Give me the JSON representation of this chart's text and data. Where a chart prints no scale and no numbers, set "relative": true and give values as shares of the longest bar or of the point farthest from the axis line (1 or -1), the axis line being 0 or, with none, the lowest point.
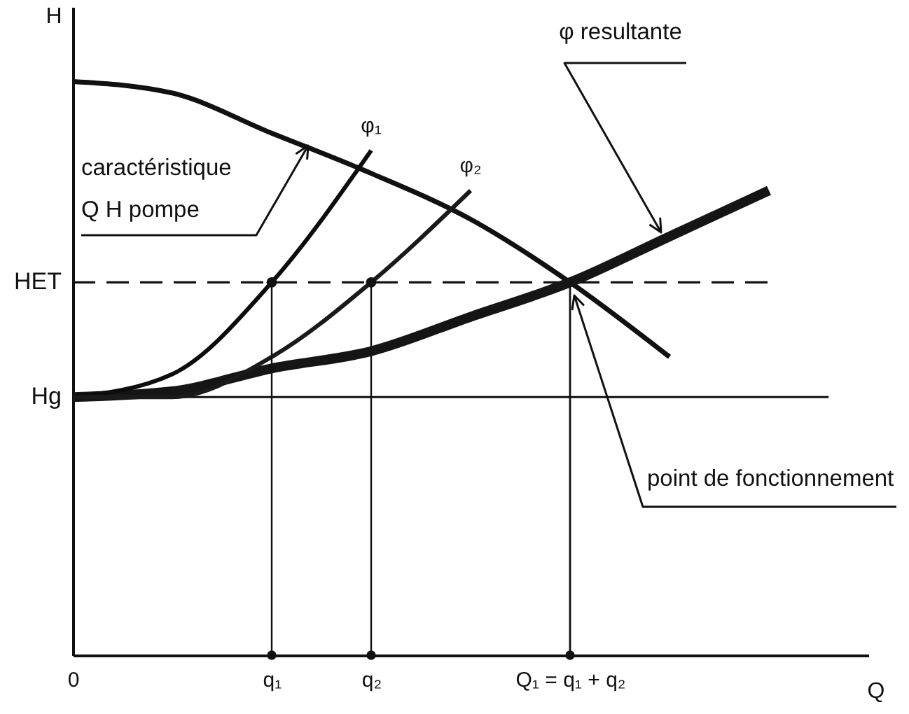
{
  "chart_data": {
    "type": "line",
    "relative": true,
    "xlabel": "Q",
    "ylabel": "H",
    "categories": [
      "0",
      null,
      "q₁",
      "q₂",
      null,
      "Q₁ = q₁ + q₂",
      null,
      null,
      null
    ],
    "series": [
      {
        "color": "#111111",
        "values": [
          1,
          0.98,
          0.91,
          0.84,
          0.76,
          0.65,
          0.52,
          null,
          null
        ]
      },
      {
        "color": "#151515",
        "values": [
          0.45,
          0.46,
          0.5,
          0.53,
          0.59,
          0.65,
          0.73,
          0.81,
          null
        ]
      },
      {
        "name": "φ₁",
        "color": "#0c0c0c",
        "values": [
          0.45,
          0.49,
          0.65,
          0.88,
          null,
          null,
          null,
          null,
          null
        ]
      },
      {
        "name": "φ₂",
        "color": "#1a1a1a",
        "values": [
          0.45,
          0.45,
          0.52,
          0.65,
          0.81,
          null,
          null,
          null,
          null
        ]
      },
      {
        "type": "lollipop",
        "color": "#111111",
        "values": [
          null,
          null,
          0.65,
          0.65,
          null,
          null,
          null,
          null,
          null
        ]
      },
      {
        "type": "bar",
        "color": "#111111",
        "values": [
          null,
          null,
          null,
          null,
          null,
          0.65,
          null,
          null,
          null
        ]
      },
      {
        "type": "scatter",
        "color": "#111111",
        "marker": "circle",
        "values": [
          null,
          null,
          0,
          0,
          null,
          0,
          null,
          null,
          null
        ]
      }
    ],
    "ref_lines": [
      {
        "axis": "y",
        "value": 0.65,
        "label": "HET",
        "line_style": "dashed"
      },
      {
        "axis": "y",
        "value": 0.45,
        "label": "Hg",
        "line_style": "solid"
      }
    ],
    "annotations": [
      "caractéristique\nQ H pompe",
      "φ resultante",
      "point de fonctionnement"
    ]
  }
}
